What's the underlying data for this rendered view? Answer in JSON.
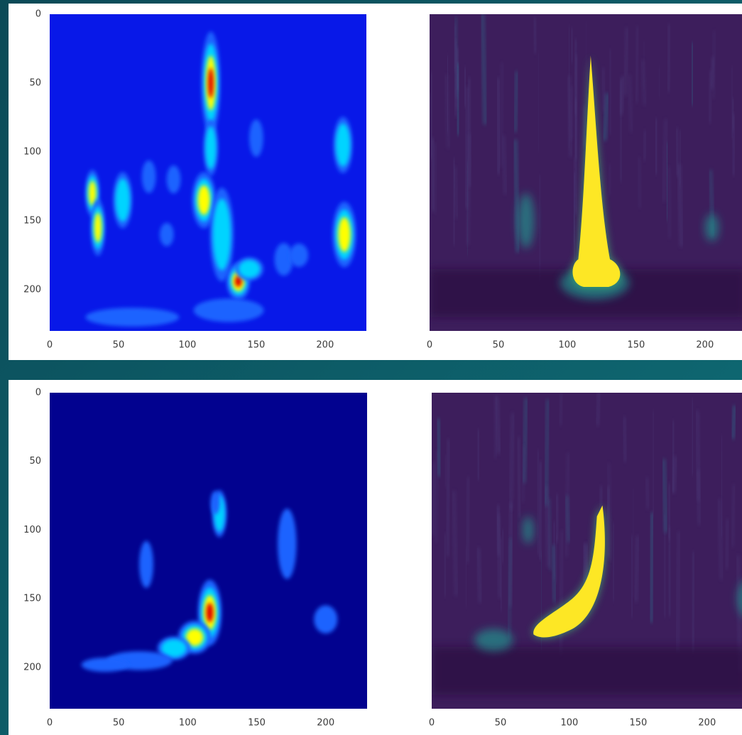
{
  "chart_data": [
    {
      "type": "image",
      "colormap": "jet",
      "xlim": [
        0,
        230
      ],
      "ylim": [
        230,
        0
      ],
      "xticks": [
        0,
        50,
        100,
        150,
        200
      ],
      "yticks": [
        0,
        50,
        100,
        150,
        200
      ]
    },
    {
      "type": "image",
      "colormap": "viridis",
      "xlim": [
        0,
        230
      ],
      "ylim": [
        230,
        0
      ],
      "xticks": [
        0,
        50,
        100,
        150,
        200
      ]
    },
    {
      "type": "image",
      "colormap": "jet",
      "xlim": [
        0,
        230
      ],
      "ylim": [
        230,
        0
      ],
      "xticks": [
        0,
        50,
        100,
        150,
        200
      ],
      "yticks": [
        0,
        50,
        100,
        150,
        200
      ]
    },
    {
      "type": "image",
      "colormap": "viridis",
      "xlim": [
        0,
        230
      ],
      "ylim": [
        230,
        0
      ],
      "xticks": [
        0,
        50,
        100,
        150,
        200
      ]
    }
  ]
}
